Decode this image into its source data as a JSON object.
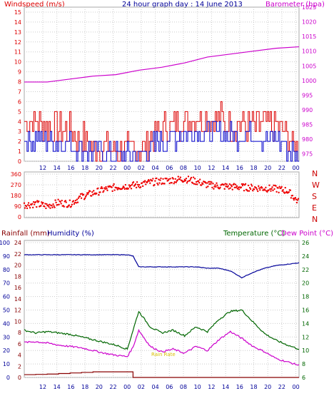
{
  "page_title": "24 hour graph day : 14 June 2013",
  "x_ticks": [
    "12",
    "14",
    "16",
    "18",
    "20",
    "22",
    "00",
    "02",
    "04",
    "06",
    "08",
    "10",
    "12",
    "14",
    "16",
    "18",
    "20",
    "22",
    "00"
  ],
  "colors": {
    "wind": "#dd0000",
    "gust": "#dd0000",
    "avg": "#0000cc",
    "baro": "#cc00cc",
    "dir": "#ee0000",
    "humidity": "#000099",
    "temp": "#006600",
    "dew": "#cc00cc",
    "rain": "#880000",
    "grid": "#cccccc"
  },
  "chart_data": [
    {
      "type": "line",
      "title": "24 hour graph day : 14 June 2013",
      "left_axis": {
        "label": "Windspeed (m/s)",
        "ylim": [
          0,
          15.5
        ],
        "ticks": [
          "0",
          "1",
          "2",
          "3",
          "4",
          "5",
          "6",
          "7",
          "8",
          "9",
          "10",
          "11",
          "12",
          "13",
          "14",
          "15"
        ]
      },
      "right_axis": {
        "label": "Barometer (hpa)",
        "ylim": [
          972.5,
          1025
        ],
        "ticks": [
          "975",
          "980",
          "985",
          "990",
          "995",
          "1000",
          "1005",
          "1010",
          "1015",
          "1020",
          "1025"
        ]
      },
      "x": [
        0,
        2,
        4,
        6,
        8,
        10,
        12,
        14,
        16,
        18,
        20,
        22,
        24
      ],
      "series": [
        {
          "values": [
            4.2,
            3.6,
            3.0,
            1.6,
            1.0,
            1.2,
            3.2,
            4.2,
            4.6,
            3.8,
            3.6,
            3.6,
            1.2
          ]
        },
        {
          "values": [
            2.4,
            2.0,
            1.8,
            0.9,
            0.5,
            0.6,
            2.0,
            2.8,
            3.0,
            2.6,
            2.6,
            2.2,
            0.5
          ]
        },
        {
          "values": [
            999.5,
            999.5,
            1000.5,
            1001.5,
            1002.0,
            1003.5,
            1004.5,
            1006.0,
            1008.0,
            1009.0,
            1010.0,
            1011.0,
            1011.5
          ]
        }
      ]
    },
    {
      "type": "scatter",
      "right_labels": [
        "N",
        "W",
        "S",
        "E",
        "N"
      ],
      "yticks": [
        "0",
        "90",
        "180",
        "270",
        "360"
      ],
      "ylim": [
        0,
        360
      ],
      "x": [
        0,
        1,
        2,
        3,
        4,
        5,
        6,
        7,
        8,
        9,
        10,
        11,
        12,
        13,
        14,
        15,
        16,
        17,
        18,
        19,
        20,
        21,
        22,
        23,
        24
      ],
      "values": [
        100,
        110,
        90,
        120,
        110,
        170,
        200,
        230,
        250,
        260,
        270,
        290,
        300,
        310,
        320,
        300,
        270,
        260,
        255,
        250,
        245,
        240,
        235,
        220,
        120
      ]
    },
    {
      "type": "line",
      "left_axes": [
        {
          "label": "Rainfall (mm)"
        },
        {
          "label": "Humidity (%)",
          "ylim": [
            0,
            100
          ],
          "ticks": [
            "0",
            "10",
            "20",
            "30",
            "40",
            "50",
            "60",
            "70",
            "80",
            "90",
            "100"
          ]
        }
      ],
      "inner_axis_ticks": [
        "0",
        "2",
        "4",
        "6",
        "8",
        "10",
        "12",
        "14",
        "16",
        "18",
        "20",
        "22",
        "24"
      ],
      "right_axes": [
        {
          "label": "Temperature (°C)"
        },
        {
          "label": "Dew Point (°C)",
          "ylim": [
            6,
            26
          ],
          "ticks": [
            "6",
            "8",
            "10",
            "12",
            "14",
            "16",
            "18",
            "20",
            "22",
            "24",
            "26"
          ]
        }
      ],
      "annotation": "Rain Rate",
      "x": [
        0,
        2,
        4,
        6,
        8,
        10,
        12,
        14,
        16,
        18,
        19,
        20,
        22,
        24,
        26,
        28,
        30,
        32,
        34,
        36,
        38,
        40,
        42,
        44,
        46,
        48
      ],
      "series": [
        {
          "name": "Humidity (%)",
          "values": [
            91,
            91,
            91,
            91,
            91,
            91,
            91,
            91,
            91,
            91,
            90,
            82,
            82,
            82,
            82,
            82,
            82,
            81,
            81,
            79,
            74,
            78,
            81,
            83,
            84,
            85
          ]
        },
        {
          "name": "Temperature (°C)",
          "values": [
            13.0,
            12.6,
            12.8,
            12.6,
            12.4,
            12.0,
            11.6,
            11.2,
            10.8,
            10.2,
            13.0,
            15.8,
            13.5,
            12.6,
            13.0,
            12.2,
            13.5,
            12.8,
            14.6,
            15.8,
            16.0,
            14.2,
            12.5,
            11.5,
            10.8,
            10.2
          ]
        },
        {
          "name": "Dew Point (°C)",
          "values": [
            11.2,
            11.3,
            11.1,
            10.8,
            10.6,
            10.4,
            10.0,
            9.6,
            9.3,
            9.1,
            10.5,
            13.0,
            10.6,
            9.8,
            10.2,
            9.6,
            10.6,
            10.0,
            11.6,
            12.8,
            11.8,
            10.6,
            9.8,
            8.8,
            8.3,
            7.8
          ]
        },
        {
          "name": "Rainfall (mm)",
          "values": [
            0.5,
            0.55,
            0.6,
            0.7,
            0.8,
            0.9,
            1.0,
            1.0,
            1.0,
            1.0,
            0,
            0,
            0,
            0,
            0,
            0,
            0,
            0,
            0,
            0,
            0,
            0,
            0,
            0,
            0,
            0
          ]
        }
      ]
    }
  ]
}
